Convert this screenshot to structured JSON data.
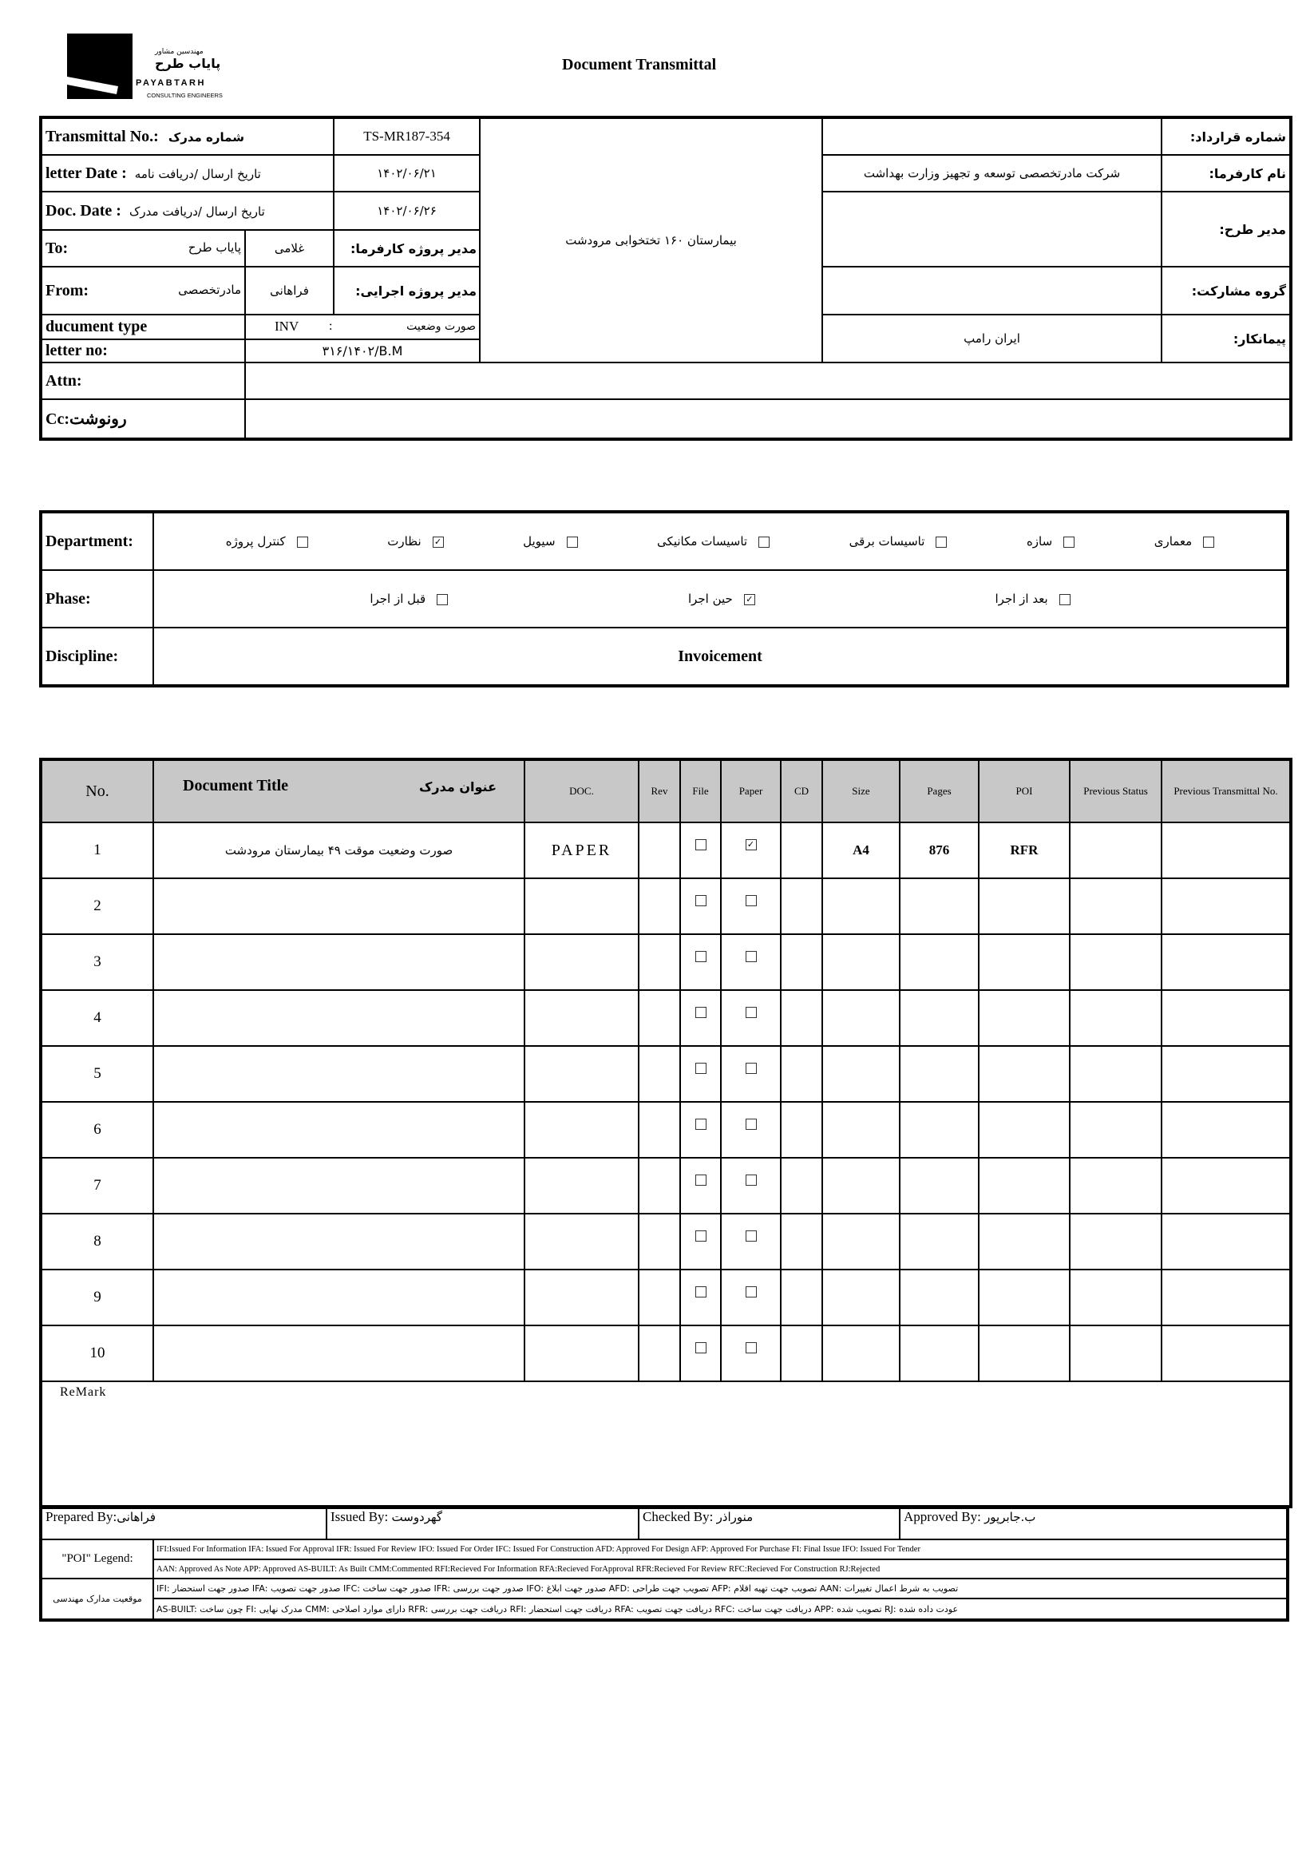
{
  "logo": {
    "fa_small": "مهندسين مشاور",
    "fa_name": "پاياب طرح",
    "en_name": "PAYABTARH",
    "en_sub": "CONSULTING ENGINEERS"
  },
  "title": "Document Transmittal",
  "header": {
    "transmittal_no_label": "Transmittal No.:",
    "transmittal_no_fa": "شماره مدرک",
    "transmittal_no": "TS-MR187-354",
    "letter_date_label": "letter Date :",
    "letter_date_fa": "تاريخ ارسال /دريافت نامه",
    "letter_date": "۱۴۰۲/۰۶/۲۱",
    "doc_date_label": "Doc. Date :",
    "doc_date_fa": "تاريخ ارسال /دريافت مدرک",
    "doc_date": "۱۴۰۲/۰۶/۲۶",
    "to_label": "To:",
    "to_value": "پاياب طرح",
    "to_person": "غلامی",
    "client_pm_label": "مدير پروژه کارفرما:",
    "from_label": "From:",
    "from_value": "مادرتخصصی",
    "from_person": "فراهانی",
    "exec_pm_label": "مدير پروژه اجرايی:",
    "doc_type_label": "ducument type",
    "doc_type_code": "INV",
    "doc_type_sep": ":",
    "doc_type_fa": "صورت وضعيت",
    "letter_no_label": "letter no:",
    "letter_no": "۳۱۶/۱۴۰۲/B.M",
    "project": "بيمارستان ۱۶۰ تختخوابی مرودشت",
    "contract_no_label": "شماره قرارداد:",
    "contract_no": "",
    "client_label": "نام کارفرما:",
    "client": "شرکت مادرتخصصی توسعه و تجهيز وزارت بهداشت",
    "plan_manager_label": "مدير طرح:",
    "plan_manager": "",
    "partner_label": "گروه مشارکت:",
    "partner": "",
    "contractor_label": "پيمانکار:",
    "contractor": "ايران رامپ",
    "attn_label": "Attn:",
    "attn": "",
    "cc_label": "Cc:رونوشت",
    "cc": ""
  },
  "department": {
    "label": "Department:",
    "options": [
      {
        "label": "کنترل پروژه",
        "checked": false
      },
      {
        "label": "نظارت",
        "checked": true
      },
      {
        "label": "سيويل",
        "checked": false
      },
      {
        "label": "تاسيسات مکانيکی",
        "checked": false
      },
      {
        "label": "تاسيسات برقی",
        "checked": false
      },
      {
        "label": "سازه",
        "checked": false
      },
      {
        "label": "معماری",
        "checked": false
      }
    ]
  },
  "phase": {
    "label": "Phase:",
    "options": [
      {
        "label": "قبل از اجرا",
        "checked": false
      },
      {
        "label": "حين اجرا",
        "checked": true
      },
      {
        "label": "بعد از اجرا",
        "checked": false
      }
    ]
  },
  "discipline": {
    "label": "Discipline:",
    "value": "Invoicement"
  },
  "table": {
    "headers": {
      "no": "No.",
      "title_en": "Document Title",
      "title_fa": "عنوان مدرک",
      "doc": "DOC.",
      "rev": "Rev",
      "file": "File",
      "paper": "Paper",
      "cd": "CD",
      "size": "Size",
      "pages": "Pages",
      "poi": "POI",
      "prev_status": "Previous Status",
      "prev_transmittal": "Previous Transmittal No."
    },
    "rows": [
      {
        "no": "1",
        "title": "صورت وضعيت موقت ۴۹ بيمارستان مرودشت",
        "doc": "PAPER",
        "rev": "",
        "file": false,
        "paper": true,
        "cd": "",
        "size": "A4",
        "pages": "876",
        "poi": "RFR",
        "prev_status": "",
        "prev_transmittal": ""
      },
      {
        "no": "2",
        "title": "",
        "doc": "",
        "rev": "",
        "file": false,
        "paper": false,
        "cd": "",
        "size": "",
        "pages": "",
        "poi": "",
        "prev_status": "",
        "prev_transmittal": ""
      },
      {
        "no": "3",
        "title": "",
        "doc": "",
        "rev": "",
        "file": false,
        "paper": false,
        "cd": "",
        "size": "",
        "pages": "",
        "poi": "",
        "prev_status": "",
        "prev_transmittal": ""
      },
      {
        "no": "4",
        "title": "",
        "doc": "",
        "rev": "",
        "file": false,
        "paper": false,
        "cd": "",
        "size": "",
        "pages": "",
        "poi": "",
        "prev_status": "",
        "prev_transmittal": ""
      },
      {
        "no": "5",
        "title": "",
        "doc": "",
        "rev": "",
        "file": false,
        "paper": false,
        "cd": "",
        "size": "",
        "pages": "",
        "poi": "",
        "prev_status": "",
        "prev_transmittal": ""
      },
      {
        "no": "6",
        "title": "",
        "doc": "",
        "rev": "",
        "file": false,
        "paper": false,
        "cd": "",
        "size": "",
        "pages": "",
        "poi": "",
        "prev_status": "",
        "prev_transmittal": ""
      },
      {
        "no": "7",
        "title": "",
        "doc": "",
        "rev": "",
        "file": false,
        "paper": false,
        "cd": "",
        "size": "",
        "pages": "",
        "poi": "",
        "prev_status": "",
        "prev_transmittal": ""
      },
      {
        "no": "8",
        "title": "",
        "doc": "",
        "rev": "",
        "file": false,
        "paper": false,
        "cd": "",
        "size": "",
        "pages": "",
        "poi": "",
        "prev_status": "",
        "prev_transmittal": ""
      },
      {
        "no": "9",
        "title": "",
        "doc": "",
        "rev": "",
        "file": false,
        "paper": false,
        "cd": "",
        "size": "",
        "pages": "",
        "poi": "",
        "prev_status": "",
        "prev_transmittal": ""
      },
      {
        "no": "10",
        "title": "",
        "doc": "",
        "rev": "",
        "file": false,
        "paper": false,
        "cd": "",
        "size": "",
        "pages": "",
        "poi": "",
        "prev_status": "",
        "prev_transmittal": ""
      }
    ]
  },
  "remark_label": "ReMark",
  "signatures": {
    "prepared_label": "Prepared By:",
    "prepared": "فراهانی",
    "issued_label": "Issued By:",
    "issued": "گهردوست",
    "checked_label": "Checked By:",
    "checked": "منوراذر",
    "approved_label": "Approved By:",
    "approved": "ب.جابرپور"
  },
  "legend": {
    "label": "\"POI\" Legend:",
    "line1": "IFI:Issued For Information  IFA: Issued For Approval  IFR: Issued For Review   IFO: Issued For Order  IFC: Issued For Construction AFD: Approved For Design AFP: Approved For Purchase  FI: Final Issue  IFO: Issued For Tender",
    "line2": "AAN: Approved As Note  APP: Approved  AS-BUILT: As Built CMM:Commented  RFI:Recieved For Information   RFA:Recieved ForApproval   RFR:Recieved For Review  RFC:Recieved For Construction  RJ:Rejected"
  },
  "eng_status": {
    "label": "موقعيت مدارک مهندسی",
    "line1": "IFI: صدور جهت استحضار    IFA: صدور جهت تصويب    IFC: صدور جهت ساخت    IFR: صدور جهت بررسی    IFO: صدور جهت ابلاغ    AFD: تصويب جهت طراحی    AFP: تصويب جهت تهيه اقلام    AAN: تصويب به شرط اعمال تغييرات",
    "line2": "AS-BUILT: چون ساخت    FI: مدرک نهايی    CMM: دارای موارد اصلاحی    RFR: دريافت جهت بررسی    RFI: دريافت جهت استحضار    RFA: دريافت جهت تصويب    RFC: دريافت جهت ساخت    APP: تصويب شده    RJ: عودت داده شده"
  }
}
